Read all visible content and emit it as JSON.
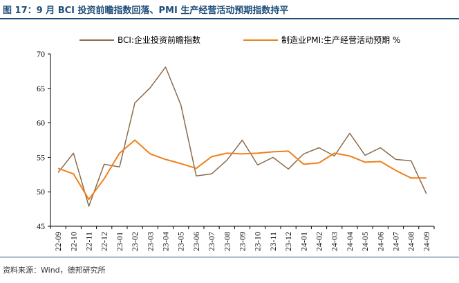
{
  "header": {
    "title": "图 17：9 月 BCI 投资前瞻指数回落、PMI 生产经营活动预期指数持平"
  },
  "footer": {
    "source": "资料来源：Wind，德邦研究所"
  },
  "colors": {
    "bci": "#8b6b4a",
    "pmi": "#f07f1b",
    "title": "#1f4e79"
  },
  "chart_data": {
    "type": "line",
    "title": "",
    "xlabel": "",
    "ylabel": "",
    "ylim": [
      45,
      70
    ],
    "yticks": [
      45,
      50,
      55,
      60,
      65,
      70
    ],
    "categories": [
      "22-09",
      "22-10",
      "22-11",
      "22-12",
      "23-01",
      "23-02",
      "23-03",
      "23-04",
      "23-05",
      "23-06",
      "23-07",
      "23-08",
      "23-09",
      "23-10",
      "23-11",
      "23-12",
      "24-01",
      "24-02",
      "24-03",
      "24-04",
      "24-05",
      "24-06",
      "24-07",
      "24-08",
      "24-09"
    ],
    "legend_position": "top",
    "series": [
      {
        "name": "BCI:企业投资前瞻指数",
        "color": "#8b6b4a",
        "values": [
          52.8,
          55.6,
          47.9,
          54.0,
          53.6,
          62.9,
          65.1,
          68.1,
          62.6,
          52.3,
          52.6,
          54.6,
          57.5,
          53.9,
          55.0,
          53.3,
          55.5,
          56.4,
          55.2,
          58.5,
          55.3,
          56.4,
          54.7,
          54.5,
          49.7
        ]
      },
      {
        "name": "制造业PMI:生产经营活动预期 %",
        "color": "#f07f1b",
        "values": [
          53.4,
          52.6,
          48.9,
          51.9,
          55.6,
          57.5,
          55.5,
          54.7,
          54.1,
          53.4,
          55.1,
          55.6,
          55.5,
          55.6,
          55.8,
          55.9,
          54.0,
          54.2,
          55.6,
          55.2,
          54.3,
          54.4,
          53.1,
          52.0,
          52.0
        ]
      }
    ]
  }
}
